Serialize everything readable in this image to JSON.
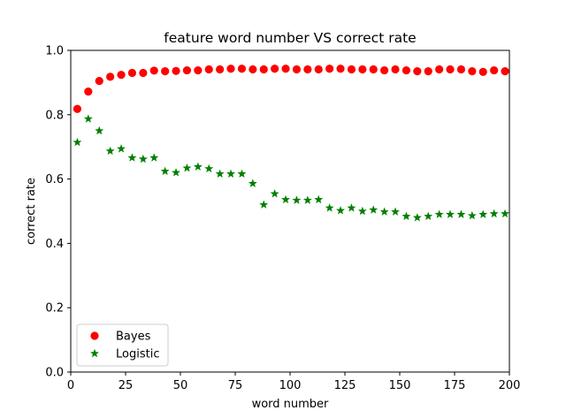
{
  "chart_data": {
    "type": "scatter",
    "title": "feature word number VS correct rate",
    "xlabel": "word number",
    "ylabel": "correct rate",
    "xlim": [
      0,
      200
    ],
    "ylim": [
      0,
      1.0
    ],
    "xticks": [
      "0",
      "25",
      "50",
      "75",
      "100",
      "125",
      "150",
      "175",
      "200"
    ],
    "yticks": [
      "0.0",
      "0.2",
      "0.4",
      "0.6",
      "0.8",
      "1.0"
    ],
    "grid": false,
    "legend_position": "lower-left",
    "x": [
      3,
      8,
      13,
      18,
      23,
      28,
      33,
      38,
      43,
      48,
      53,
      58,
      63,
      68,
      73,
      78,
      83,
      88,
      93,
      98,
      103,
      108,
      113,
      118,
      123,
      128,
      133,
      138,
      143,
      148,
      153,
      158,
      163,
      168,
      173,
      178,
      183,
      188,
      193,
      198
    ],
    "series": [
      {
        "name": "Bayes",
        "marker": "circle",
        "color": "#ff0000",
        "values": [
          0.818,
          0.872,
          0.905,
          0.918,
          0.924,
          0.93,
          0.93,
          0.937,
          0.935,
          0.936,
          0.938,
          0.938,
          0.941,
          0.941,
          0.943,
          0.943,
          0.941,
          0.941,
          0.943,
          0.943,
          0.941,
          0.941,
          0.941,
          0.943,
          0.943,
          0.941,
          0.941,
          0.941,
          0.938,
          0.941,
          0.938,
          0.935,
          0.935,
          0.941,
          0.941,
          0.941,
          0.935,
          0.933,
          0.938,
          0.935
        ]
      },
      {
        "name": "Logistic",
        "marker": "star",
        "color": "#008000",
        "values": [
          0.714,
          0.787,
          0.75,
          0.687,
          0.694,
          0.666,
          0.662,
          0.666,
          0.624,
          0.62,
          0.634,
          0.638,
          0.632,
          0.616,
          0.616,
          0.616,
          0.586,
          0.52,
          0.554,
          0.536,
          0.534,
          0.534,
          0.536,
          0.51,
          0.502,
          0.51,
          0.5,
          0.504,
          0.498,
          0.498,
          0.484,
          0.48,
          0.484,
          0.49,
          0.49,
          0.49,
          0.486,
          0.49,
          0.492,
          0.492
        ]
      }
    ]
  }
}
